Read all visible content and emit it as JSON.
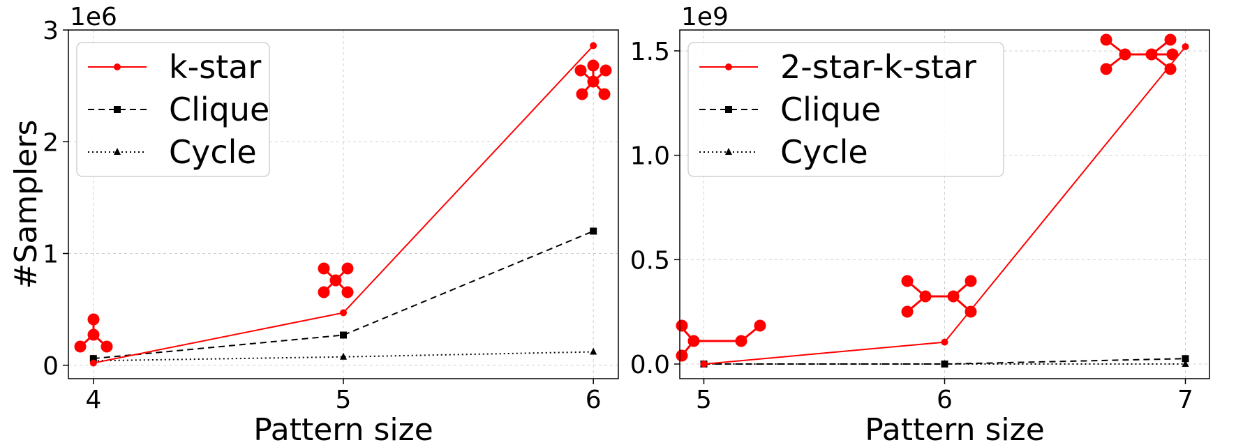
{
  "chart_data": [
    {
      "type": "line",
      "xlabel": "Pattern size",
      "ylabel": "#Samplers",
      "y_offset_label": "1e6",
      "x": [
        4,
        5,
        6
      ],
      "xlim": [
        3.9,
        6.1
      ],
      "ylim": [
        -0.12,
        3.0
      ],
      "yticks": [
        0,
        1,
        2,
        3
      ],
      "ytick_labels": [
        "0",
        "1",
        "2",
        "3"
      ],
      "xtick_labels": [
        "4",
        "5",
        "6"
      ],
      "grid": true,
      "legend_position": "top-left",
      "series": [
        {
          "name": "k-star",
          "values": [
            0.02,
            0.47,
            2.86
          ],
          "color": "#ff0000",
          "dash": "solid",
          "marker": "circle"
        },
        {
          "name": "Clique",
          "values": [
            0.06,
            0.27,
            1.2
          ],
          "color": "#000000",
          "dash": "dashed",
          "marker": "square"
        },
        {
          "name": "Cycle",
          "values": [
            0.04,
            0.075,
            0.12
          ],
          "color": "#000000",
          "dash": "dotted",
          "marker": "triangle"
        }
      ],
      "annotations": [
        "3-star pattern glyph",
        "4-star pattern glyph",
        "5-star pattern glyph"
      ]
    },
    {
      "type": "line",
      "xlabel": "Pattern size",
      "ylabel": "",
      "y_offset_label": "1e9",
      "x": [
        5,
        6,
        7
      ],
      "xlim": [
        4.9,
        7.1
      ],
      "ylim": [
        -0.07,
        1.6
      ],
      "yticks": [
        0.0,
        0.5,
        1.0,
        1.5
      ],
      "ytick_labels": [
        "0.0",
        "0.5",
        "1.0",
        "1.5"
      ],
      "xtick_labels": [
        "5",
        "6",
        "7"
      ],
      "grid": true,
      "legend_position": "top-left",
      "series": [
        {
          "name": "2-star-k-star",
          "values": [
            0.0,
            0.105,
            1.52
          ],
          "color": "#ff0000",
          "dash": "solid",
          "marker": "circle"
        },
        {
          "name": "Clique",
          "values": [
            0.0,
            0.0,
            0.026
          ],
          "color": "#000000",
          "dash": "dashed",
          "marker": "square"
        },
        {
          "name": "Cycle",
          "values": [
            0.0,
            0.0,
            0.0
          ],
          "color": "#000000",
          "dash": "dotted",
          "marker": "triangle"
        }
      ],
      "annotations": [
        "2-star-2-star pattern glyph",
        "2-star-3-star pattern glyph",
        "3-star-3-star pattern glyph"
      ]
    }
  ]
}
